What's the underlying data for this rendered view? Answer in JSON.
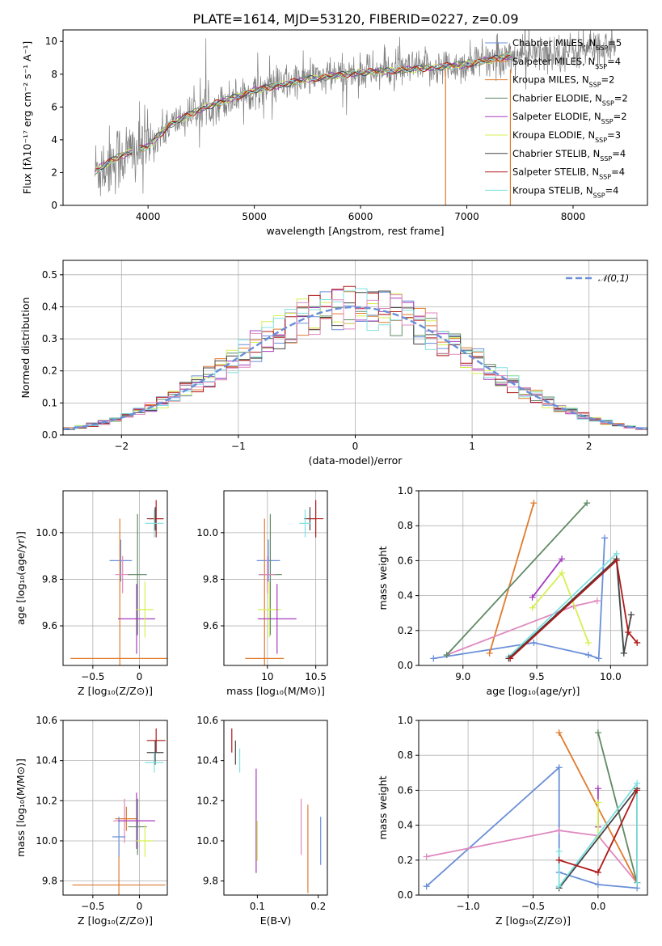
{
  "figure_title": "PLATE=1614, MJD=53120, FIBERID=0227, z=0.09",
  "colors": {
    "Chabrier MILES": "#6a8fd8",
    "Salpeter MILES": "#e07b2c",
    "Kroupa MILES": "#e07b2c",
    "Chabrier ELODIE": "#5f8a64",
    "Salpeter ELODIE": "#a53cc0",
    "Kroupa ELODIE": "#d6ef52",
    "Chabrier STELIB": "#444444",
    "Salpeter STELIB": "#b01818",
    "Kroupa STELIB": "#80e0e0",
    "pink": "#e089bf",
    "data": "#808080"
  },
  "chart_data": [
    {
      "id": "spectrum",
      "type": "line",
      "title": "PLATE=1614, MJD=53120, FIBERID=0227, z=0.09",
      "xlabel": "wavelength [Angstrom, rest frame]",
      "ylabel": "Flux [fλ10⁻¹⁷ erg cm⁻² s⁻¹ A⁻¹]",
      "xlim": [
        3200,
        8700
      ],
      "ylim": [
        0,
        10.7
      ],
      "xticks": [
        4000,
        5000,
        6000,
        7000,
        8000
      ],
      "yticks": [
        0,
        2,
        4,
        6,
        8,
        10
      ],
      "legend_position": "upper-right",
      "legend": [
        {
          "name": "Chabrier MILES",
          "nssp": "5"
        },
        {
          "name": "Salpeter MILES",
          "nssp": "4"
        },
        {
          "name": "Kroupa MILES",
          "nssp": "2"
        },
        {
          "name": "Chabrier ELODIE",
          "nssp": "2"
        },
        {
          "name": "Salpeter ELODIE",
          "nssp": "2"
        },
        {
          "name": "Kroupa ELODIE",
          "nssp": "3"
        },
        {
          "name": "Chabrier STELIB",
          "nssp": "4"
        },
        {
          "name": "Salpeter STELIB",
          "nssp": "4"
        },
        {
          "name": "Kroupa STELIB",
          "nssp": "4"
        }
      ],
      "continuum": [
        [
          3500,
          2.1
        ],
        [
          3700,
          2.9
        ],
        [
          3900,
          3.4
        ],
        [
          4000,
          3.6
        ],
        [
          4200,
          4.9
        ],
        [
          4500,
          5.9
        ],
        [
          5000,
          7.0
        ],
        [
          5500,
          7.7
        ],
        [
          6000,
          8.1
        ],
        [
          6500,
          8.3
        ],
        [
          7000,
          8.6
        ],
        [
          7400,
          9.1
        ],
        [
          7800,
          9.3
        ],
        [
          8300,
          9.6
        ]
      ],
      "data_range": [
        3500,
        8400
      ],
      "model_ranges": [
        [
          3500,
          3850
        ],
        [
          3920,
          7420
        ]
      ]
    },
    {
      "id": "residual-histogram",
      "type": "histogram",
      "xlabel": "(data-model)/error",
      "ylabel": "Normed distribution",
      "xlim": [
        -2.5,
        2.5
      ],
      "ylim": [
        0,
        0.545
      ],
      "xticks": [
        -2,
        -1,
        0,
        1,
        2
      ],
      "yticks": [
        0.0,
        0.1,
        0.2,
        0.3,
        0.4,
        0.5
      ],
      "grid": true,
      "legend_position": "upper-right",
      "legend_label": "𝒩(0,1)",
      "reference": {
        "name": "𝒩(0,1)",
        "mean": 0,
        "sigma": 1,
        "style": "dashed"
      },
      "bin_width": 0.1
    },
    {
      "id": "age-vs-z",
      "type": "errorbar",
      "xlabel": "Z [log₁₀(Z/Z⊙)]",
      "ylabel": "age  [log₁₀(age/yr)]",
      "xlim": [
        -0.82,
        0.3
      ],
      "ylim": [
        9.43,
        10.18
      ],
      "xticks": [
        -0.5,
        0.0
      ],
      "yticks": [
        9.6,
        9.8,
        10.0
      ],
      "grid": true,
      "points": [
        {
          "model": "Chabrier MILES",
          "x": -0.2,
          "xerr": 0.12,
          "y": 9.88,
          "yerr": 0.09
        },
        {
          "model": "Salpeter MILES",
          "x": -0.21,
          "xerr": 0.53,
          "y": 9.46,
          "yerr": 0.6
        },
        {
          "model": "pink",
          "x": -0.18,
          "xerr": 0.08,
          "y": 9.82,
          "yerr": 0.08
        },
        {
          "model": "Chabrier ELODIE",
          "x": -0.02,
          "xerr": 0.1,
          "y": 9.82,
          "yerr": 0.26
        },
        {
          "model": "Salpeter ELODIE",
          "x": -0.03,
          "xerr": 0.2,
          "y": 9.63,
          "yerr": 0.15
        },
        {
          "model": "Kroupa ELODIE",
          "x": 0.06,
          "xerr": 0.09,
          "y": 9.67,
          "yerr": 0.12
        },
        {
          "model": "Chabrier STELIB",
          "x": 0.17,
          "xerr": 0.09,
          "y": 10.06,
          "yerr": 0.05
        },
        {
          "model": "Salpeter STELIB",
          "x": 0.18,
          "xerr": 0.08,
          "y": 10.06,
          "yerr": 0.08
        },
        {
          "model": "Kroupa STELIB",
          "x": 0.16,
          "xerr": 0.1,
          "y": 10.04,
          "yerr": 0.06
        }
      ]
    },
    {
      "id": "age-vs-mass",
      "type": "errorbar",
      "xlabel": "mass [log₁₀(M/M⊙)]",
      "ylabel": "",
      "xlim": [
        9.55,
        10.62
      ],
      "ylim": [
        9.43,
        10.18
      ],
      "xticks": [
        10.0,
        10.5
      ],
      "yticks": [
        9.6,
        9.8,
        10.0
      ],
      "grid": true,
      "points": [
        {
          "model": "Salpeter MILES",
          "x": 9.97,
          "xerr": 0.2,
          "y": 9.46,
          "yerr": 0.6
        },
        {
          "model": "Chabrier MILES",
          "x": 10.01,
          "xerr": 0.12,
          "y": 9.88,
          "yerr": 0.09
        },
        {
          "model": "Chabrier ELODIE",
          "x": 10.03,
          "xerr": 0.12,
          "y": 9.82,
          "yerr": 0.26
        },
        {
          "model": "Kroupa ELODIE",
          "x": 10.02,
          "xerr": 0.12,
          "y": 9.67,
          "yerr": 0.12
        },
        {
          "model": "Salpeter ELODIE",
          "x": 10.1,
          "xerr": 0.2,
          "y": 9.63,
          "yerr": 0.15
        },
        {
          "model": "pink",
          "x": 10.0,
          "xerr": 0.08,
          "y": 9.82,
          "yerr": 0.08
        },
        {
          "model": "Chabrier STELIB",
          "x": 10.44,
          "xerr": 0.06,
          "y": 10.06,
          "yerr": 0.05
        },
        {
          "model": "Salpeter STELIB",
          "x": 10.5,
          "xerr": 0.08,
          "y": 10.06,
          "yerr": 0.08
        },
        {
          "model": "Kroupa STELIB",
          "x": 10.39,
          "xerr": 0.06,
          "y": 10.04,
          "yerr": 0.06
        }
      ]
    },
    {
      "id": "weight-vs-age",
      "type": "line",
      "xlabel": "age  [log₁₀(age/yr)]",
      "ylabel": "mass weight",
      "xlim": [
        8.7,
        10.25
      ],
      "ylim": [
        0,
        1
      ],
      "xticks": [
        9.0,
        9.5,
        10.0
      ],
      "yticks": [
        0.0,
        0.2,
        0.4,
        0.6,
        0.8,
        1.0
      ],
      "grid": true,
      "series": [
        {
          "model": "Chabrier MILES",
          "points": [
            [
              8.8,
              0.04
            ],
            [
              9.48,
              0.13
            ],
            [
              9.85,
              0.06
            ],
            [
              9.92,
              0.04
            ],
            [
              9.96,
              0.73
            ]
          ]
        },
        {
          "model": "Salpeter MILES",
          "points": [
            [
              9.18,
              0.07
            ],
            [
              9.48,
              0.93
            ]
          ]
        },
        {
          "model": "pink",
          "points": [
            [
              8.89,
              0.06
            ],
            [
              9.75,
              0.34
            ],
            [
              9.91,
              0.37
            ]
          ]
        },
        {
          "model": "Chabrier ELODIE",
          "points": [
            [
              8.89,
              0.06
            ],
            [
              9.84,
              0.93
            ]
          ]
        },
        {
          "model": "Salpeter ELODIE",
          "points": [
            [
              9.47,
              0.39
            ],
            [
              9.67,
              0.61
            ]
          ]
        },
        {
          "model": "Kroupa ELODIE",
          "points": [
            [
              9.47,
              0.33
            ],
            [
              9.67,
              0.53
            ],
            [
              9.85,
              0.13
            ]
          ]
        },
        {
          "model": "Kroupa STELIB",
          "points": [
            [
              9.31,
              0.05
            ],
            [
              10.04,
              0.64
            ],
            [
              10.09,
              0.07
            ]
          ]
        },
        {
          "model": "Chabrier STELIB",
          "points": [
            [
              9.31,
              0.04
            ],
            [
              10.04,
              0.61
            ],
            [
              10.09,
              0.07
            ],
            [
              10.14,
              0.29
            ]
          ]
        },
        {
          "model": "Salpeter STELIB",
          "points": [
            [
              9.32,
              0.04
            ],
            [
              10.04,
              0.6
            ],
            [
              10.12,
              0.19
            ],
            [
              10.18,
              0.13
            ]
          ]
        }
      ]
    },
    {
      "id": "mass-vs-z",
      "type": "errorbar",
      "xlabel": "Z [log₁₀(Z/Z⊙)]",
      "ylabel": "mass [log₁₀(M/M⊙)]",
      "xlim": [
        -0.82,
        0.3
      ],
      "ylim": [
        9.73,
        10.6
      ],
      "xticks": [
        -0.5,
        0.0
      ],
      "yticks": [
        9.8,
        10.0,
        10.2,
        10.4,
        10.6
      ],
      "grid": true,
      "points": [
        {
          "model": "Salpeter MILES",
          "x": -0.22,
          "xerr": 0.5,
          "y": 9.78,
          "yerr": 0.21
        },
        {
          "model": "pink",
          "x": -0.16,
          "xerr": 0.12,
          "y": 10.1,
          "yerr": 0.11
        },
        {
          "model": "Kroupa MILES",
          "x": -0.14,
          "xerr": 0.12,
          "y": 10.11,
          "yerr": 0.06
        },
        {
          "model": "Chabrier MILES",
          "x": -0.22,
          "xerr": 0.07,
          "y": 10.02,
          "yerr": 0.1
        },
        {
          "model": "Chabrier ELODIE",
          "x": -0.02,
          "xerr": 0.1,
          "y": 10.07,
          "yerr": 0.14
        },
        {
          "model": "Salpeter ELODIE",
          "x": -0.03,
          "xerr": 0.2,
          "y": 10.1,
          "yerr": 0.14
        },
        {
          "model": "Kroupa ELODIE",
          "x": 0.06,
          "xerr": 0.09,
          "y": 10.0,
          "yerr": 0.08
        },
        {
          "model": "Salpeter STELIB",
          "x": 0.18,
          "xerr": 0.1,
          "y": 10.5,
          "yerr": 0.06
        },
        {
          "model": "Chabrier STELIB",
          "x": 0.17,
          "xerr": 0.09,
          "y": 10.44,
          "yerr": 0.06
        },
        {
          "model": "Kroupa STELIB",
          "x": 0.16,
          "xerr": 0.1,
          "y": 10.39,
          "yerr": 0.05
        }
      ]
    },
    {
      "id": "mass-vs-ebv",
      "type": "errorbar",
      "xlabel": "E(B-V)",
      "ylabel": "",
      "xlim": [
        0.045,
        0.215
      ],
      "ylim": [
        9.73,
        10.6
      ],
      "xticks": [
        0.1,
        0.2
      ],
      "yticks": [
        9.8,
        10.0,
        10.2,
        10.4,
        10.6
      ],
      "grid": false,
      "points": [
        {
          "model": "Salpeter STELIB",
          "x": 0.058,
          "xerr": 0,
          "y": 10.5,
          "yerr": 0.06
        },
        {
          "model": "Chabrier STELIB",
          "x": 0.064,
          "xerr": 0,
          "y": 10.44,
          "yerr": 0.06
        },
        {
          "model": "Kroupa STELIB",
          "x": 0.071,
          "xerr": 0,
          "y": 10.4,
          "yerr": 0.06
        },
        {
          "model": "Salpeter ELODIE",
          "x": 0.098,
          "xerr": 0,
          "y": 10.1,
          "yerr": 0.26
        },
        {
          "model": "Kroupa ELODIE",
          "x": 0.1,
          "xerr": 0,
          "y": 10.0,
          "yerr": 0.1
        },
        {
          "model": "pink",
          "x": 0.172,
          "xerr": 0,
          "y": 10.07,
          "yerr": 0.14
        },
        {
          "model": "Salpeter MILES",
          "x": 0.183,
          "xerr": 0,
          "y": 9.96,
          "yerr": 0.22
        },
        {
          "model": "Chabrier MILES",
          "x": 0.204,
          "xerr": 0,
          "y": 10.0,
          "yerr": 0.12
        }
      ]
    },
    {
      "id": "weight-vs-z",
      "type": "line",
      "xlabel": "Z [log₁₀(Z/Z⊙)]",
      "ylabel": "mass weight",
      "xlim": [
        -1.38,
        0.38
      ],
      "ylim": [
        0,
        1
      ],
      "xticks": [
        -1.0,
        -0.5,
        0.0
      ],
      "yticks": [
        0.0,
        0.2,
        0.4,
        0.6,
        0.8,
        1.0
      ],
      "grid": true,
      "series": [
        {
          "model": "Chabrier MILES",
          "points": [
            [
              -1.32,
              0.05
            ],
            [
              -0.3,
              0.73
            ],
            [
              -0.3,
              0.13
            ],
            [
              0.0,
              0.06
            ],
            [
              0.3,
              0.04
            ]
          ]
        },
        {
          "model": "pink",
          "points": [
            [
              -1.32,
              0.22
            ],
            [
              -0.3,
              0.37
            ],
            [
              0.0,
              0.34
            ],
            [
              0.3,
              0.07
            ]
          ]
        },
        {
          "model": "Salpeter MILES",
          "points": [
            [
              -0.3,
              0.93
            ],
            [
              0.3,
              0.07
            ]
          ]
        },
        {
          "model": "Chabrier ELODIE",
          "points": [
            [
              0.0,
              0.93
            ],
            [
              0.3,
              0.07
            ]
          ]
        },
        {
          "model": "Salpeter ELODIE",
          "points": [
            [
              0.0,
              0.61
            ],
            [
              0.0,
              0.39
            ]
          ]
        },
        {
          "model": "Kroupa ELODIE",
          "points": [
            [
              0.0,
              0.53
            ],
            [
              0.0,
              0.33
            ]
          ]
        },
        {
          "model": "Chabrier STELIB",
          "points": [
            [
              -0.3,
              0.04
            ],
            [
              0.3,
              0.61
            ],
            [
              0.3,
              0.07
            ]
          ]
        },
        {
          "model": "Kroupa STELIB",
          "points": [
            [
              -0.3,
              0.25
            ],
            [
              -0.3,
              0.05
            ],
            [
              0.3,
              0.64
            ],
            [
              0.3,
              0.07
            ]
          ]
        },
        {
          "model": "Salpeter STELIB",
          "points": [
            [
              -0.3,
              0.2
            ],
            [
              0.0,
              0.13
            ],
            [
              0.3,
              0.6
            ]
          ]
        }
      ]
    }
  ]
}
